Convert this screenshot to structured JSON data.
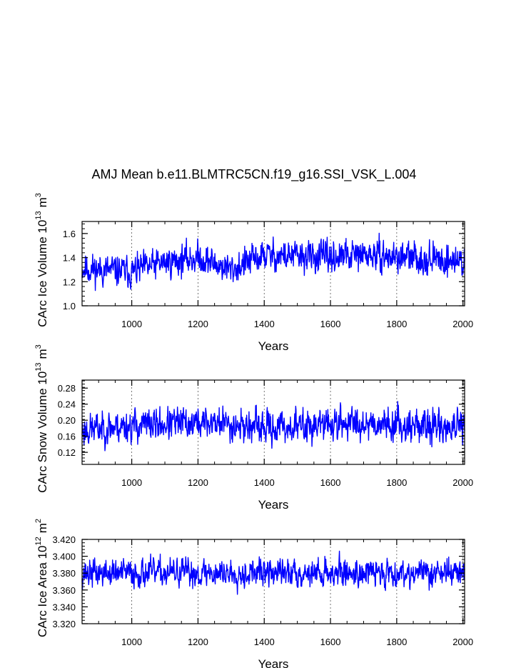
{
  "title": "AMJ Mean b.e11.BLMTRC5CN.f19_g16.SSI_VSK_L.004",
  "line_color": "#0000ff",
  "chart_data": [
    {
      "type": "line",
      "name": "ice-volume",
      "ylabel": "CArc Ice Volume 10",
      "ylabel_exp": "13",
      "ylabel_unit": "m",
      "ylabel_unit_exp": "3",
      "xlabel": "Years",
      "xlim": [
        850,
        2005
      ],
      "ylim": [
        1.0,
        1.7
      ],
      "xticks": [
        1000,
        1200,
        1400,
        1600,
        1800,
        2000
      ],
      "xticklabels": [
        "1000",
        "1200",
        "1400",
        "1600",
        "1800",
        "2000"
      ],
      "yticks": [
        1.0,
        1.2,
        1.4,
        1.6
      ],
      "yticklabels": [
        "1.0",
        "1.2",
        "1.4",
        "1.6"
      ],
      "series": {
        "x_start": 850,
        "x_end": 2005,
        "seed": 11,
        "mean": 1.37,
        "noise": 0.07,
        "trend": [
          [
            850,
            1.31
          ],
          [
            1000,
            1.28
          ],
          [
            1100,
            1.36
          ],
          [
            1200,
            1.4
          ],
          [
            1300,
            1.3
          ],
          [
            1400,
            1.42
          ],
          [
            1600,
            1.4
          ],
          [
            1700,
            1.42
          ],
          [
            2005,
            1.37
          ]
        ],
        "clip": [
          1.06,
          1.64
        ]
      }
    },
    {
      "type": "line",
      "name": "snow-volume",
      "ylabel": "CArc Snow Volume 10",
      "ylabel_exp": "13",
      "ylabel_unit": "m",
      "ylabel_unit_exp": "3",
      "xlabel": "Years",
      "xlim": [
        850,
        2005
      ],
      "ylim": [
        0.09,
        0.3
      ],
      "xticks": [
        1000,
        1200,
        1400,
        1600,
        1800,
        2000
      ],
      "xticklabels": [
        "1000",
        "1200",
        "1400",
        "1600",
        "1800",
        "2000"
      ],
      "yticks": [
        0.12,
        0.16,
        0.2,
        0.24,
        0.28
      ],
      "yticklabels": [
        "0.12",
        "0.16",
        "0.20",
        "0.24",
        "0.28"
      ],
      "series": {
        "x_start": 850,
        "x_end": 2005,
        "seed": 23,
        "mean": 0.185,
        "noise": 0.022,
        "trend": [
          [
            850,
            0.175
          ],
          [
            960,
            0.185
          ],
          [
            1100,
            0.19
          ],
          [
            1250,
            0.195
          ],
          [
            1400,
            0.18
          ],
          [
            1700,
            0.195
          ],
          [
            2005,
            0.18
          ]
        ],
        "clip": [
          0.115,
          0.292
        ]
      }
    },
    {
      "type": "line",
      "name": "ice-area",
      "ylabel": "CArc Ice Area 10",
      "ylabel_exp": "12",
      "ylabel_unit": "m",
      "ylabel_unit_exp": "2",
      "xlabel": "Years",
      "xlim": [
        850,
        2005
      ],
      "ylim": [
        3.32,
        3.42
      ],
      "xticks": [
        1000,
        1200,
        1400,
        1600,
        1800,
        2000
      ],
      "xticklabels": [
        "1000",
        "1200",
        "1400",
        "1600",
        "1800",
        "2000"
      ],
      "yticks": [
        3.32,
        3.34,
        3.36,
        3.38,
        3.4,
        3.42
      ],
      "yticklabels": [
        "3.320",
        "3.340",
        "3.360",
        "3.380",
        "3.400",
        "3.420"
      ],
      "series": {
        "x_start": 850,
        "x_end": 2005,
        "seed": 37,
        "mean": 3.381,
        "noise": 0.009,
        "trend": [
          [
            850,
            3.38
          ],
          [
            2005,
            3.381
          ]
        ],
        "clip": [
          3.337,
          3.414
        ]
      }
    }
  ]
}
